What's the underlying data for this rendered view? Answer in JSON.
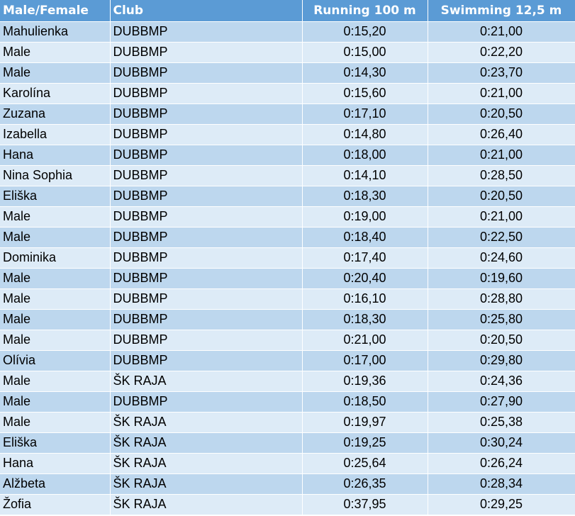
{
  "columns": [
    "Male/Female",
    "Club",
    "Running 100 m",
    "Swimming 12,5 m"
  ],
  "rows": [
    [
      "Mahulienka",
      "DUBBMP",
      "0:15,20",
      "0:21,00"
    ],
    [
      "Male",
      "DUBBMP",
      "0:15,00",
      "0:22,20"
    ],
    [
      "Male",
      "DUBBMP",
      "0:14,30",
      "0:23,70"
    ],
    [
      "Karolína",
      "DUBBMP",
      "0:15,60",
      "0:21,00"
    ],
    [
      "Zuzana",
      "DUBBMP",
      "0:17,10",
      "0:20,50"
    ],
    [
      "Izabella",
      "DUBBMP",
      "0:14,80",
      "0:26,40"
    ],
    [
      "Hana",
      "DUBBMP",
      "0:18,00",
      "0:21,00"
    ],
    [
      "Nina Sophia",
      "DUBBMP",
      "0:14,10",
      "0:28,50"
    ],
    [
      "Eliška",
      "DUBBMP",
      "0:18,30",
      "0:20,50"
    ],
    [
      "Male",
      "DUBBMP",
      "0:19,00",
      "0:21,00"
    ],
    [
      "Male",
      "DUBBMP",
      "0:18,40",
      "0:22,50"
    ],
    [
      "Dominika",
      "DUBBMP",
      "0:17,40",
      "0:24,60"
    ],
    [
      "Male",
      "DUBBMP",
      "0:20,40",
      "0:19,60"
    ],
    [
      "Male",
      "DUBBMP",
      "0:16,10",
      "0:28,80"
    ],
    [
      "Male",
      "DUBBMP",
      "0:18,30",
      "0:25,80"
    ],
    [
      "Male",
      "DUBBMP",
      "0:21,00",
      "0:20,50"
    ],
    [
      "Olívia",
      "DUBBMP",
      "0:17,00",
      "0:29,80"
    ],
    [
      "Male",
      "ŠK RAJA",
      "0:19,36",
      "0:24,36"
    ],
    [
      "Male",
      "DUBBMP",
      "0:18,50",
      "0:27,90"
    ],
    [
      "Male",
      "ŠK RAJA",
      "0:19,97",
      "0:25,38"
    ],
    [
      "Eliška",
      "ŠK RAJA",
      "0:19,25",
      "0:30,24"
    ],
    [
      "Hana",
      "ŠK RAJA",
      "0:25,64",
      "0:26,24"
    ],
    [
      "Alžbeta",
      "ŠK RAJA",
      "0:26,35",
      "0:28,34"
    ],
    [
      "Žofia",
      "ŠK RAJA",
      "0:37,95",
      "0:29,25"
    ]
  ],
  "colors": {
    "header_bg": "#5b9bd5",
    "header_text": "#ffffff",
    "row_band_light": "#ddebf7",
    "row_band_dark": "#bdd7ee"
  }
}
